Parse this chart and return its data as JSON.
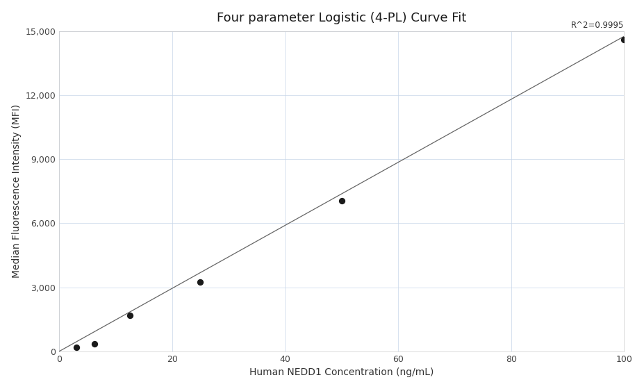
{
  "title": "Four parameter Logistic (4-PL) Curve Fit",
  "xlabel": "Human NEDD1 Concentration (ng/mL)",
  "ylabel": "Median Fluorescence Intensity (MFI)",
  "scatter_x": [
    3.125,
    6.25,
    12.5,
    25,
    50,
    100
  ],
  "scatter_y": [
    200,
    350,
    1700,
    3250,
    7050,
    14600
  ],
  "line_x": [
    0,
    100
  ],
  "line_y": [
    0,
    14750
  ],
  "r_squared_text": "R^2=0.9995",
  "r_squared_x": 100,
  "r_squared_y": 15050,
  "xlim": [
    0,
    100
  ],
  "ylim": [
    0,
    15000
  ],
  "xticks": [
    0,
    20,
    40,
    60,
    80,
    100
  ],
  "yticks": [
    0,
    3000,
    6000,
    9000,
    12000,
    15000
  ],
  "dot_color": "#1a1a1a",
  "dot_size": 45,
  "line_color": "#666666",
  "line_width": 0.9,
  "grid_color": "#c5d5e8",
  "grid_alpha": 0.8,
  "background_color": "#ffffff",
  "title_fontsize": 13,
  "label_fontsize": 10,
  "tick_fontsize": 9,
  "annotation_fontsize": 8.5
}
